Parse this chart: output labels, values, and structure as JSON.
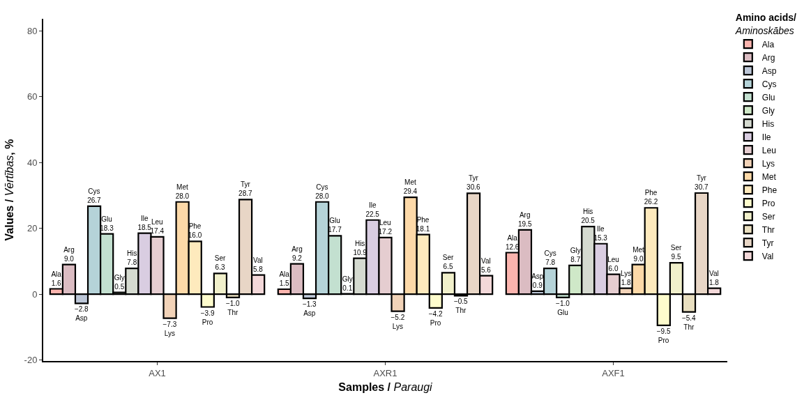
{
  "chart_data": {
    "type": "bar",
    "xlabel": "Samples / Paraugi",
    "ylabel": "Values / Vērtības, %",
    "legend_title": "Amino acids/ Aminoskābes",
    "categories": [
      "AX1",
      "AXR1",
      "AXF1"
    ],
    "ylim": [
      -20.3,
      83.6
    ],
    "yticks": [
      -20,
      0,
      20,
      40,
      60,
      80
    ],
    "legend": "right",
    "series": [
      {
        "name": "Ala",
        "color": "#fbb4ae",
        "values": [
          1.6,
          1.5,
          12.6
        ],
        "value_labels": [
          "1.6",
          "1.5",
          "12.6"
        ]
      },
      {
        "name": "Arg",
        "color": "#dbbcc2",
        "values": [
          9.0,
          9.2,
          19.5
        ],
        "value_labels": [
          "9.0",
          "9.2",
          "19.5"
        ]
      },
      {
        "name": "Asp",
        "color": "#bcc6d7",
        "values": [
          -2.8,
          -1.3,
          0.9
        ],
        "value_labels": [
          "−2.8",
          "−1.3",
          "0.9"
        ]
      },
      {
        "name": "Cys",
        "color": "#b5d3d8",
        "values": [
          26.7,
          28.0,
          7.8
        ],
        "value_labels": [
          "26.7",
          "28.0",
          "7.8"
        ]
      },
      {
        "name": "Glu",
        "color": "#c3e0d0",
        "values": [
          18.3,
          17.7,
          -1.0
        ],
        "value_labels": [
          "18.3",
          "17.7",
          "−1.0"
        ]
      },
      {
        "name": "Gly",
        "color": "#cfe8c8",
        "values": [
          0.5,
          0.1,
          8.7
        ],
        "value_labels": [
          "0.5",
          "0.1",
          "8.7"
        ]
      },
      {
        "name": "His",
        "color": "#d5dad0",
        "values": [
          7.8,
          10.9,
          20.5
        ],
        "value_labels": [
          "7.8",
          "10.9",
          "20.5"
        ]
      },
      {
        "name": "Ile",
        "color": "#d9cde1",
        "values": [
          18.5,
          22.5,
          15.3
        ],
        "value_labels": [
          "18.5",
          "22.5",
          "15.3"
        ]
      },
      {
        "name": "Leu",
        "color": "#e5cdd0",
        "values": [
          17.4,
          17.2,
          6.0
        ],
        "value_labels": [
          "17.4",
          "17.2",
          "6.0"
        ]
      },
      {
        "name": "Lys",
        "color": "#f2d3b8",
        "values": [
          -7.3,
          -5.2,
          1.8
        ],
        "value_labels": [
          "−7.3",
          "−5.2",
          "1.8"
        ]
      },
      {
        "name": "Met",
        "color": "#fdd9a8",
        "values": [
          28.0,
          29.4,
          9.0
        ],
        "value_labels": [
          "28.0",
          "29.4",
          "9.0"
        ]
      },
      {
        "name": "Phe",
        "color": "#feeabd",
        "values": [
          16.0,
          18.1,
          26.2
        ],
        "value_labels": [
          "16.0",
          "18.1",
          "26.2"
        ]
      },
      {
        "name": "Pro",
        "color": "#fefccd",
        "values": [
          -3.9,
          -4.2,
          -9.5
        ],
        "value_labels": [
          "−3.9",
          "−4.2",
          "−9.5"
        ]
      },
      {
        "name": "Ser",
        "color": "#f1f0cb",
        "values": [
          6.3,
          6.5,
          9.5
        ],
        "value_labels": [
          "6.3",
          "6.5",
          "9.5"
        ]
      },
      {
        "name": "Thr",
        "color": "#e9dfc0",
        "values": [
          -1.0,
          -0.5,
          -5.4
        ],
        "value_labels": [
          "−1.0",
          "−0.5",
          "−5.4"
        ]
      },
      {
        "name": "Tyr",
        "color": "#e8d6c6",
        "values": [
          28.7,
          30.6,
          30.7
        ],
        "value_labels": [
          "28.7",
          "30.6",
          "30.7"
        ]
      },
      {
        "name": "Val",
        "color": "#f3d8d9",
        "values": [
          5.8,
          5.6,
          1.8
        ],
        "value_labels": [
          "5.8",
          "5.6",
          "1.8"
        ]
      }
    ]
  }
}
